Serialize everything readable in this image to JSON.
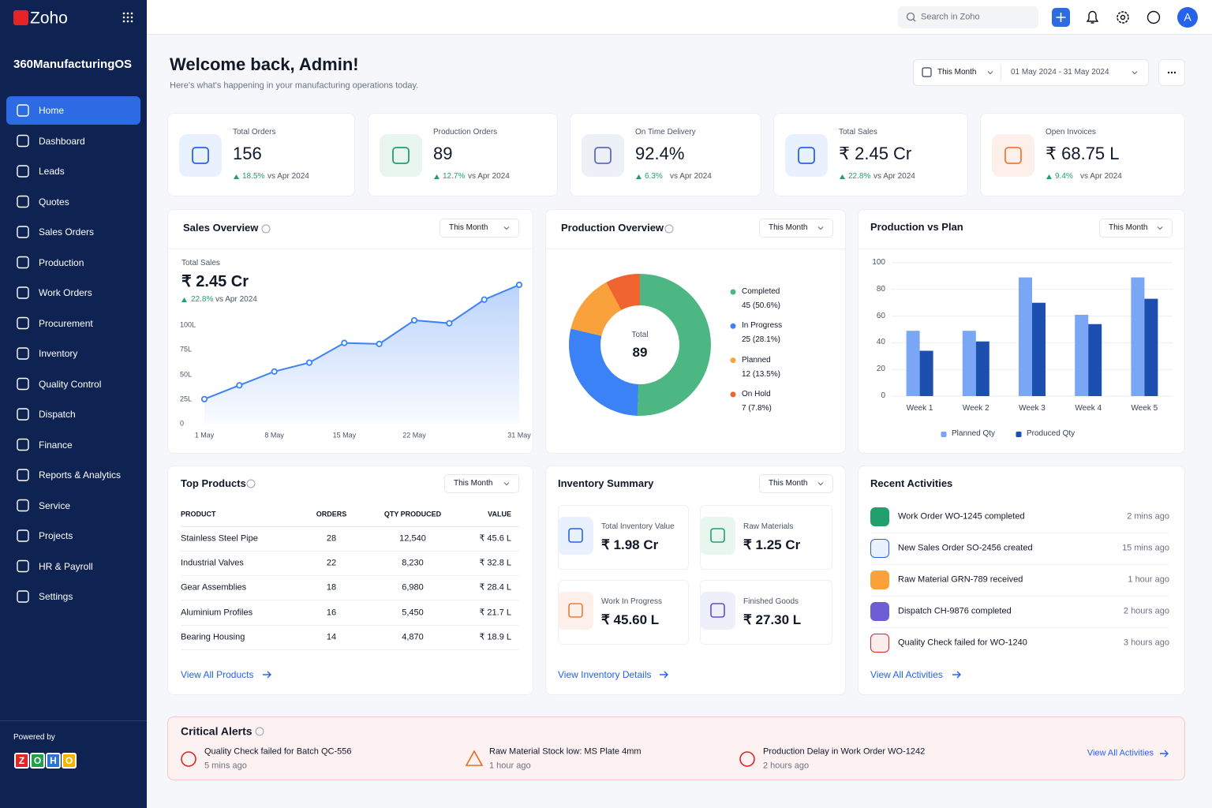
{
  "sidebar": {
    "brand": "Zoho",
    "app_name": "360ManufacturingOS",
    "nav": [
      "Home",
      "Dashboard",
      "Leads",
      "Quotes",
      "Sales Orders",
      "Production",
      "Work Orders",
      "Procurement",
      "Inventory",
      "Quality Control",
      "Dispatch",
      "Finance",
      "Reports & Analytics",
      "Service",
      "Projects",
      "HR & Payroll",
      "Settings"
    ],
    "powered_by": "Powered by",
    "powered_logo": [
      "Z",
      "O",
      "H",
      "O"
    ]
  },
  "topbar": {
    "search_placeholder": "Search in Zoho",
    "avatar": "A"
  },
  "header": {
    "title": "Welcome back, Admin!",
    "subtitle": "Here's what's happening in your manufacturing operations today.",
    "period": "This Month",
    "date_range": "01 May 2024 - 31 May 2024"
  },
  "kpis": [
    {
      "label": "Total Orders",
      "value": "156",
      "change": "18.5%",
      "compare": "vs Apr 2024"
    },
    {
      "label": "Production Orders",
      "value": "89",
      "change": "12.7%",
      "compare": "vs Apr 2024"
    },
    {
      "label": "On Time Delivery",
      "value": "92.4%",
      "change": "6.3%",
      "compare": "vs Apr 2024"
    },
    {
      "label": "Total Sales",
      "value": "₹ 2.45 Cr",
      "change": "22.8%",
      "compare": "vs Apr 2024"
    },
    {
      "label": "Open Invoices",
      "value": "₹ 68.75 L",
      "change": "9.4%",
      "compare": "vs Apr 2024"
    }
  ],
  "chart_data": [
    {
      "type": "line",
      "title": "Sales Overview",
      "period": "This Month",
      "kpi_label": "Total Sales",
      "kpi_value": "₹ 2.45 Cr",
      "kpi_change": "22.8%",
      "kpi_compare": "vs Apr 2024",
      "categories": [
        "1 May",
        null,
        "8 May",
        null,
        "15 May",
        null,
        "22 May",
        null,
        null,
        "31 May"
      ],
      "values": [
        25,
        39,
        53,
        62,
        82,
        81,
        105,
        102,
        126,
        141
      ],
      "color": "#3b82f6",
      "ylim": [
        0,
        145
      ],
      "yticks": [
        0,
        {
          "value": 25,
          "label": "25L"
        },
        {
          "value": 50,
          "label": "50L"
        },
        {
          "value": 75,
          "label": "75L"
        },
        {
          "value": 100,
          "label": "100L"
        }
      ],
      "grid": false
    },
    {
      "type": "pie",
      "title": "Production Overview",
      "period": "This Month",
      "center_label": "Total",
      "center_value": "89",
      "categories": [
        "Completed",
        "In Progress",
        "Planned",
        "On Hold"
      ],
      "values": [
        45,
        25,
        12,
        7
      ],
      "value_labels": [
        "45 (50.6%)",
        "25 (28.1%)",
        "12 (13.5%)",
        "7 (7.8%)"
      ],
      "colors": [
        "#4cb782",
        "#3b82f6",
        "#f9a23b",
        "#f0652f"
      ],
      "legend": "right"
    },
    {
      "type": "bar",
      "title": "Production vs Plan",
      "period": "This Month",
      "categories": [
        "Week 1",
        "Week 2",
        "Week 3",
        "Week 4",
        "Week 5"
      ],
      "series": [
        {
          "name": "Planned Qty",
          "color": "#7aa7f5",
          "values": [
            49,
            49,
            89,
            61,
            89
          ]
        },
        {
          "name": "Produced Qty",
          "color": "#1d4fb0",
          "values": [
            34,
            41,
            70,
            54,
            73
          ]
        }
      ],
      "ylim": [
        0,
        100
      ],
      "yticks": [
        0,
        20,
        40,
        60,
        80,
        100
      ],
      "grid": true,
      "legend": "bottom"
    }
  ],
  "top_products": {
    "title": "Top Products",
    "period": "This Month",
    "columns": [
      "PRODUCT",
      "ORDERS",
      "QTY PRODUCED",
      "VALUE"
    ],
    "rows": [
      [
        "Stainless Steel Pipe",
        "28",
        "12,540",
        "₹ 45.6 L"
      ],
      [
        "Industrial Valves",
        "22",
        "8,230",
        "₹ 32.8 L"
      ],
      [
        "Gear Assemblies",
        "18",
        "6,980",
        "₹ 28.4 L"
      ],
      [
        "Aluminium Profiles",
        "16",
        "5,450",
        "₹ 21.7 L"
      ],
      [
        "Bearing Housing",
        "14",
        "4,870",
        "₹ 18.9 L"
      ]
    ],
    "link": "View All Products"
  },
  "inventory": {
    "title": "Inventory Summary",
    "period": "This Month",
    "items": [
      {
        "label": "Total Inventory Value",
        "value": "₹ 1.98 Cr"
      },
      {
        "label": "Raw Materials",
        "value": "₹ 1.25 Cr"
      },
      {
        "label": "Work In Progress",
        "value": "₹ 45.60 L"
      },
      {
        "label": "Finished Goods",
        "value": "₹ 27.30 L"
      }
    ],
    "link": "View Inventory Details"
  },
  "activities": {
    "title": "Recent Activities",
    "items": [
      {
        "text": "Work Order WO-1245 completed",
        "time": "2 mins ago"
      },
      {
        "text": "New Sales Order SO-2456 created",
        "time": "15 mins ago"
      },
      {
        "text": "Raw Material GRN-789 received",
        "time": "1 hour ago"
      },
      {
        "text": "Dispatch CH-9876 completed",
        "time": "2 hours ago"
      },
      {
        "text": "Quality Check failed for WO-1240",
        "time": "3 hours ago"
      }
    ],
    "link": "View All Activities"
  },
  "alerts": {
    "title": "Critical Alerts",
    "items": [
      {
        "text": "Quality Check failed for Batch QC-556",
        "time": "5 mins ago"
      },
      {
        "text": "Raw Material Stock low: MS Plate 4mm",
        "time": "1 hour ago"
      },
      {
        "text": "Production Delay in Work Order WO-1242",
        "time": "2 hours ago"
      }
    ],
    "link": "View All Activities"
  }
}
